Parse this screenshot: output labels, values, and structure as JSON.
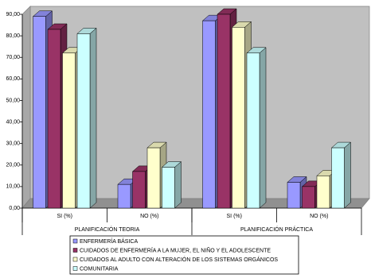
{
  "chart_data": {
    "type": "bar",
    "categories": [
      "SI (%)",
      "NO (%)",
      "SI (%)",
      "NO (%)"
    ],
    "category_groups": [
      "PLANIFICACIÓN TEORIA",
      "PLANIFICACIÓN PRÁCTICA"
    ],
    "series": [
      {
        "name": "ENFERMERÍA BÁSICA",
        "color": "#9999ff",
        "values": [
          89,
          11,
          87,
          12
        ]
      },
      {
        "name": "CUIDADOS DE ENFERMERÍA A LA MUJER, EL NIÑO Y EL ADOLESCENTE",
        "color": "#993366",
        "values": [
          83,
          17,
          90,
          10
        ]
      },
      {
        "name": "CUIDADOS AL ADULTO CON ALTERACIÓN DE LOS SISTEMAS ORGÁNICOS",
        "color": "#ffffcc",
        "values": [
          72,
          28,
          84,
          15
        ]
      },
      {
        "name": "COMUNITARIA",
        "color": "#ccffff",
        "values": [
          81,
          19,
          72,
          28
        ]
      }
    ],
    "ylim": [
      0,
      90
    ],
    "yticks": [
      {
        "value": 0,
        "label": "0,00"
      },
      {
        "value": 10,
        "label": "10,00"
      },
      {
        "value": 20,
        "label": "20,00"
      },
      {
        "value": 30,
        "label": "30,00"
      },
      {
        "value": 40,
        "label": "40,00"
      },
      {
        "value": 50,
        "label": "50,00"
      },
      {
        "value": 60,
        "label": "60,00"
      },
      {
        "value": 70,
        "label": "70,00"
      },
      {
        "value": 80,
        "label": "80,00"
      },
      {
        "value": 90,
        "label": "90,00"
      }
    ],
    "grid": false
  }
}
